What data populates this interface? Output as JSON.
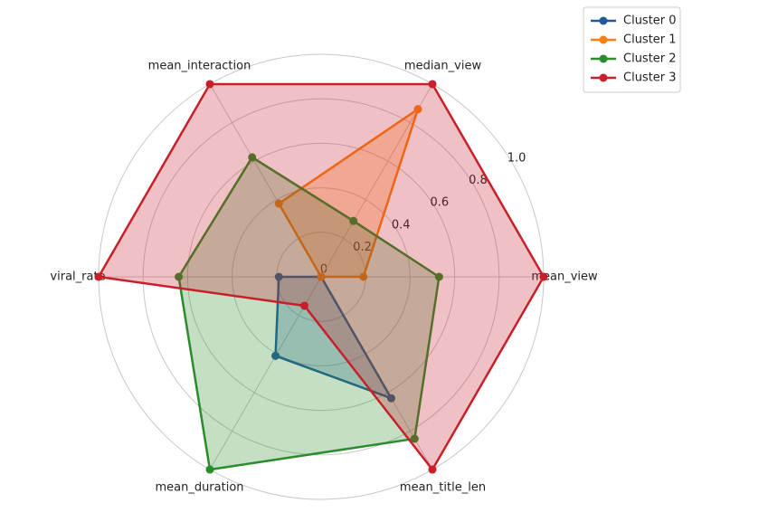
{
  "chart_data": {
    "type": "radar",
    "categories": [
      "mean_view",
      "median_view",
      "mean_interaction",
      "viral_rate",
      "mean_duration",
      "mean_title_len"
    ],
    "rlim": [
      0,
      1
    ],
    "rticks": [
      0,
      0.2,
      0.4,
      0.6,
      0.8,
      {
        "value": 1,
        "label": "1.0"
      }
    ],
    "grid": true,
    "legend": "upper right",
    "series": [
      {
        "name": "Cluster 0",
        "color": "#1f5a9e",
        "values": [
          0,
          0,
          0,
          0.19,
          0.41,
          0.63
        ]
      },
      {
        "name": "Cluster 1",
        "color": "#ff7f0e",
        "values": [
          0.19,
          0.87,
          0.38,
          0,
          0,
          0
        ]
      },
      {
        "name": "Cluster 2",
        "color": "#2a8c2a",
        "values": [
          0.53,
          0.29,
          0.62,
          0.64,
          1.0,
          0.84
        ]
      },
      {
        "name": "Cluster 3",
        "color": "#c8202a",
        "values": [
          1.0,
          1.0,
          1.0,
          1.0,
          0.15,
          1.0
        ]
      }
    ]
  }
}
